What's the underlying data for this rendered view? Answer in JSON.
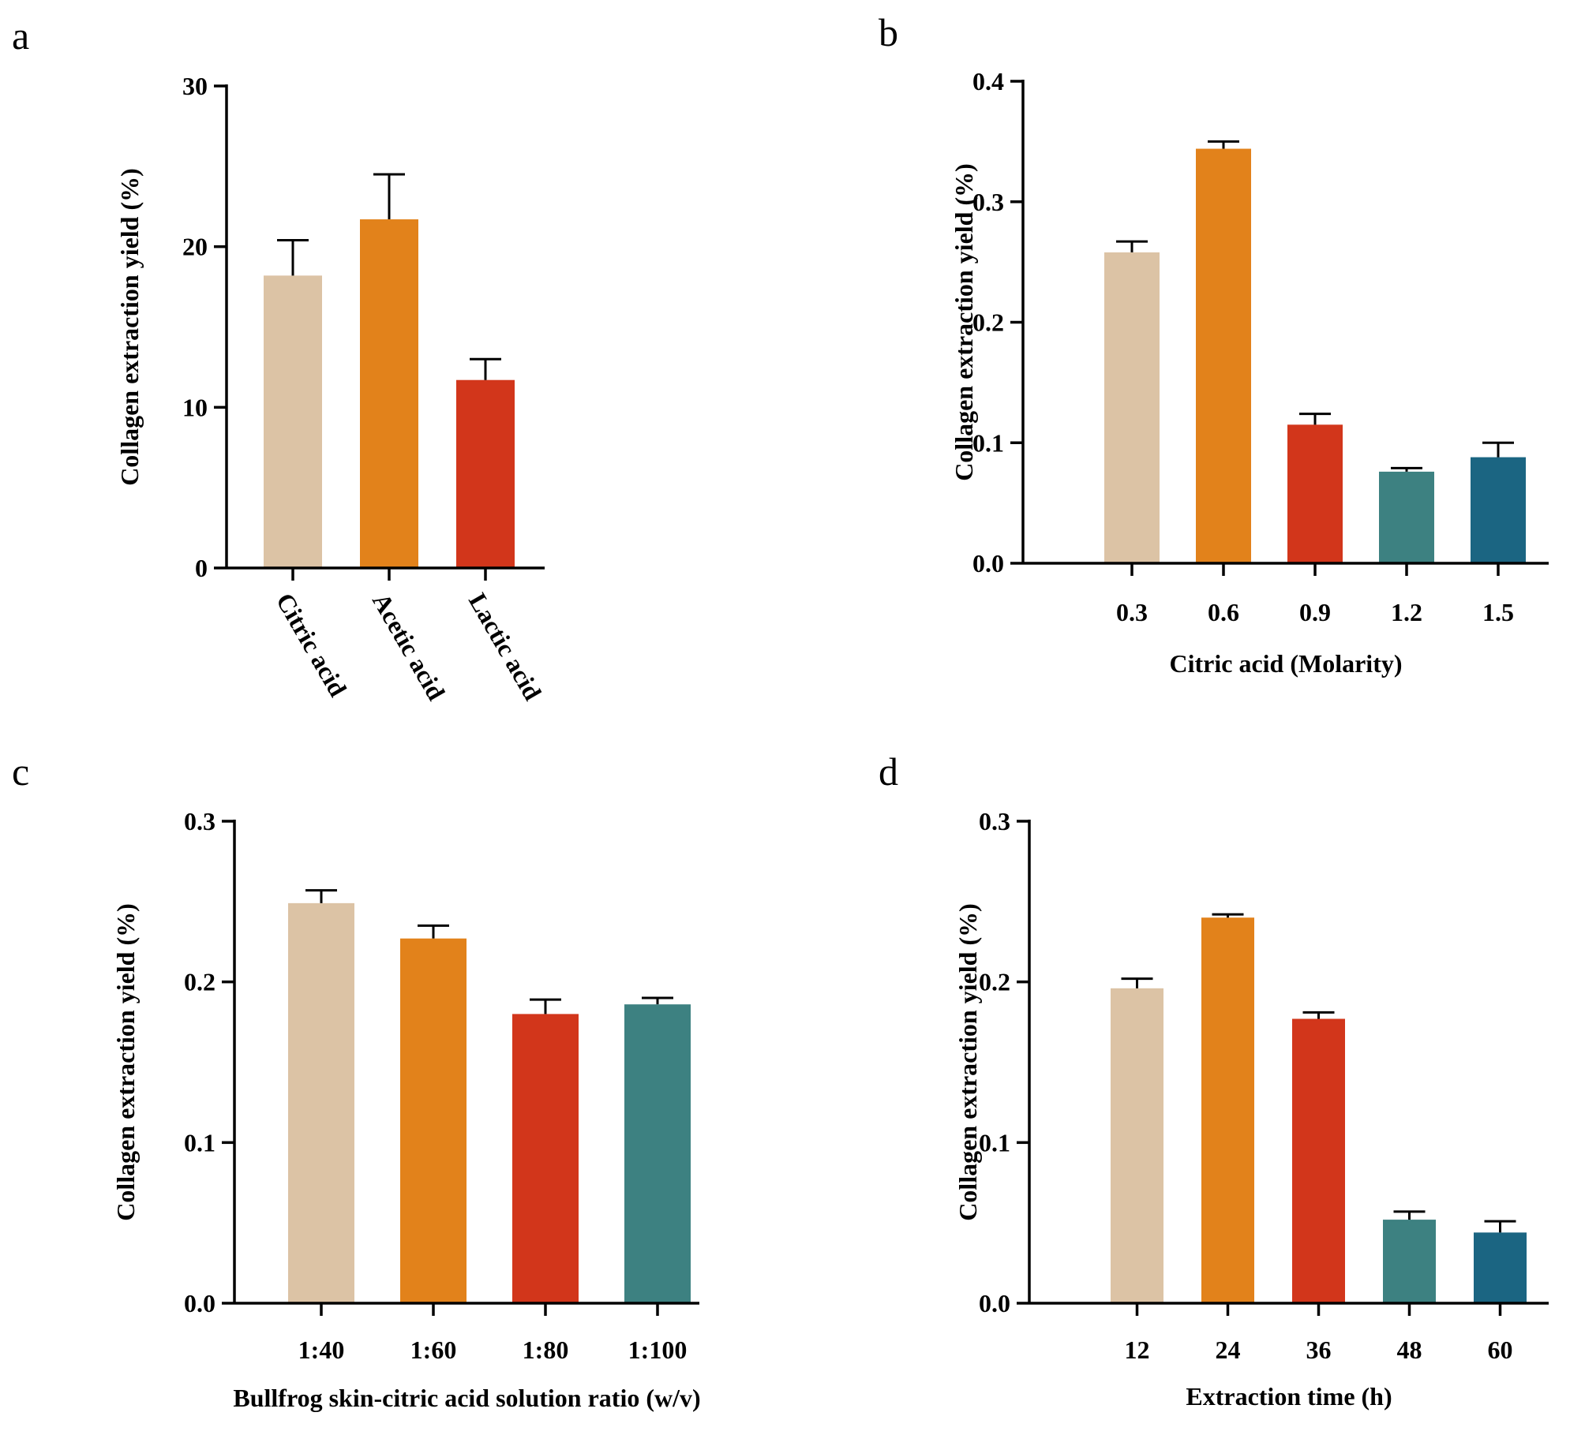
{
  "figure": {
    "colors": [
      "#dcc3a5",
      "#e2821b",
      "#d2361b",
      "#3d8181",
      "#1b6582"
    ]
  },
  "chart_data": [
    {
      "panel": "a",
      "type": "bar",
      "title": "",
      "xlabel": "",
      "ylabel": "Collagen extraction yield (%)",
      "categories": [
        "Citric acid",
        "Acetic acid",
        "Lactic acid"
      ],
      "values": [
        18.2,
        21.7,
        11.7
      ],
      "errors": [
        2.2,
        2.8,
        1.3
      ],
      "ylim": [
        0,
        30
      ],
      "yticks": [
        0,
        10,
        20,
        30
      ],
      "ytick_labels": [
        "0",
        "10",
        "20",
        "30"
      ],
      "rotated_xticks": true
    },
    {
      "panel": "b",
      "type": "bar",
      "title": "",
      "xlabel": "Citric acid (Molarity)",
      "ylabel": "Collagen extraction yield (%)",
      "categories": [
        "0.3",
        "0.6",
        "0.9",
        "1.2",
        "1.5"
      ],
      "values": [
        0.258,
        0.344,
        0.115,
        0.076,
        0.088
      ],
      "errors": [
        0.009,
        0.006,
        0.009,
        0.003,
        0.012
      ],
      "ylim": [
        0,
        0.4
      ],
      "yticks": [
        0,
        0.1,
        0.2,
        0.3,
        0.4
      ],
      "ytick_labels": [
        "0.0",
        "0.1",
        "0.2",
        "0.3",
        "0.4"
      ],
      "rotated_xticks": false
    },
    {
      "panel": "c",
      "type": "bar",
      "title": "",
      "xlabel": "Bullfrog skin-citric acid solution ratio (w/v)",
      "ylabel": "Collagen extraction yield (%)",
      "categories": [
        "1:40",
        "1:60",
        "1:80",
        "1:100"
      ],
      "values": [
        0.249,
        0.227,
        0.18,
        0.186
      ],
      "errors": [
        0.008,
        0.008,
        0.009,
        0.004
      ],
      "ylim": [
        0,
        0.3
      ],
      "yticks": [
        0,
        0.1,
        0.2,
        0.3
      ],
      "ytick_labels": [
        "0.0",
        "0.1",
        "0.2",
        "0.3"
      ],
      "rotated_xticks": false
    },
    {
      "panel": "d",
      "type": "bar",
      "title": "",
      "xlabel": "Extraction time (h)",
      "ylabel": "Collagen extraction yield (%)",
      "categories": [
        "12",
        "24",
        "36",
        "48",
        "60"
      ],
      "values": [
        0.196,
        0.24,
        0.177,
        0.052,
        0.044
      ],
      "errors": [
        0.006,
        0.002,
        0.004,
        0.005,
        0.007
      ],
      "ylim": [
        0,
        0.3
      ],
      "yticks": [
        0,
        0.1,
        0.2,
        0.3
      ],
      "ytick_labels": [
        "0.0",
        "0.1",
        "0.2",
        "0.3"
      ],
      "rotated_xticks": false
    }
  ]
}
